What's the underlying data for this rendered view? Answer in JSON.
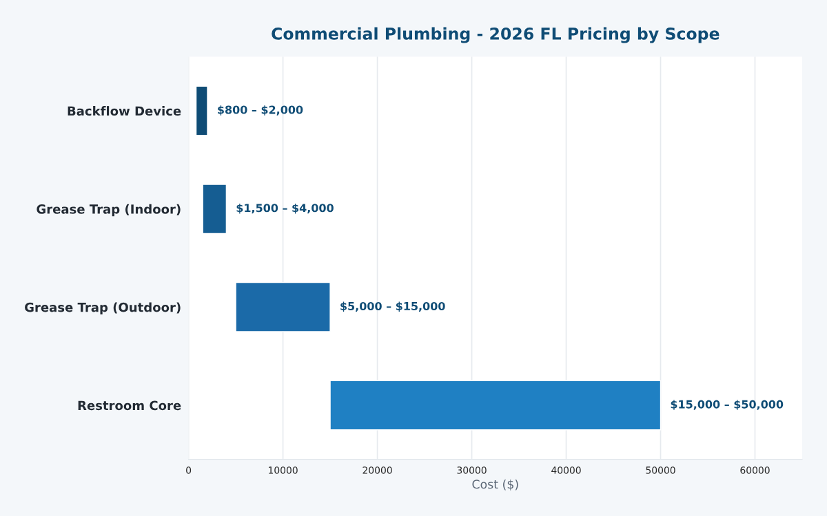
{
  "chart_data": {
    "type": "bar",
    "orientation": "horizontal",
    "title": "Commercial Plumbing - 2026 FL Pricing by Scope",
    "xlabel": "Cost ($)",
    "categories": [
      "Backflow Device",
      "Grease Trap (Indoor)",
      "Grease Trap (Outdoor)",
      "Restroom Core"
    ],
    "base": [
      800,
      1500,
      5000,
      15000
    ],
    "values": [
      1200,
      2500,
      10000,
      35000
    ],
    "colors": [
      "#0f4c75",
      "#155d92",
      "#1b6aa8",
      "#1f80c3"
    ],
    "annotations": [
      {
        "text": "$800 – $2,000",
        "x": 2000,
        "y": "Backflow Device"
      },
      {
        "text": "$1,500 – $4,000",
        "x": 4000,
        "y": "Grease Trap (Indoor)"
      },
      {
        "text": "$5,000 – $15,000",
        "x": 15000,
        "y": "Grease Trap (Outdoor)"
      },
      {
        "text": "$15,000 – $50,000",
        "x": 50000,
        "y": "Restroom Core"
      }
    ],
    "xlim": [
      0,
      65000
    ],
    "xticks": [
      0,
      10000,
      20000,
      30000,
      40000,
      50000,
      60000
    ],
    "grid": "x",
    "legend": false
  }
}
